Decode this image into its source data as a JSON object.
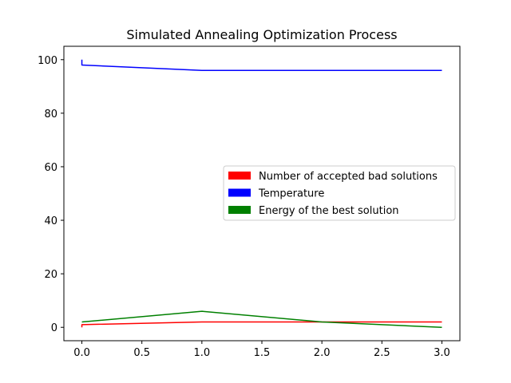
{
  "chart_data": {
    "type": "line",
    "title": "Simulated Annealing Optimization Process",
    "xlabel": "",
    "ylabel": "",
    "xlim": [
      -0.15,
      3.15
    ],
    "ylim": [
      -5,
      105
    ],
    "xticks": [
      0.0,
      0.5,
      1.0,
      1.5,
      2.0,
      2.5,
      3.0
    ],
    "xtick_labels": [
      "0.0",
      "0.5",
      "1.0",
      "1.5",
      "2.0",
      "2.5",
      "3.0"
    ],
    "yticks": [
      0,
      20,
      40,
      60,
      80,
      100
    ],
    "ytick_labels": [
      "0",
      "20",
      "40",
      "60",
      "80",
      "100"
    ],
    "grid": false,
    "legend_position": "center-right",
    "series": [
      {
        "name": "Number of accepted bad solutions",
        "color": "#ff0000",
        "x": [
          0,
          0,
          1,
          2,
          3
        ],
        "y": [
          0,
          1,
          2,
          2,
          2
        ]
      },
      {
        "name": "Temperature",
        "color": "#0000ff",
        "x": [
          0,
          0,
          1,
          2,
          3
        ],
        "y": [
          100,
          98,
          96,
          96,
          96
        ]
      },
      {
        "name": "Energy of the best solution",
        "color": "#008000",
        "x": [
          0,
          1,
          2,
          3
        ],
        "y": [
          2,
          6,
          2,
          0
        ]
      }
    ]
  }
}
